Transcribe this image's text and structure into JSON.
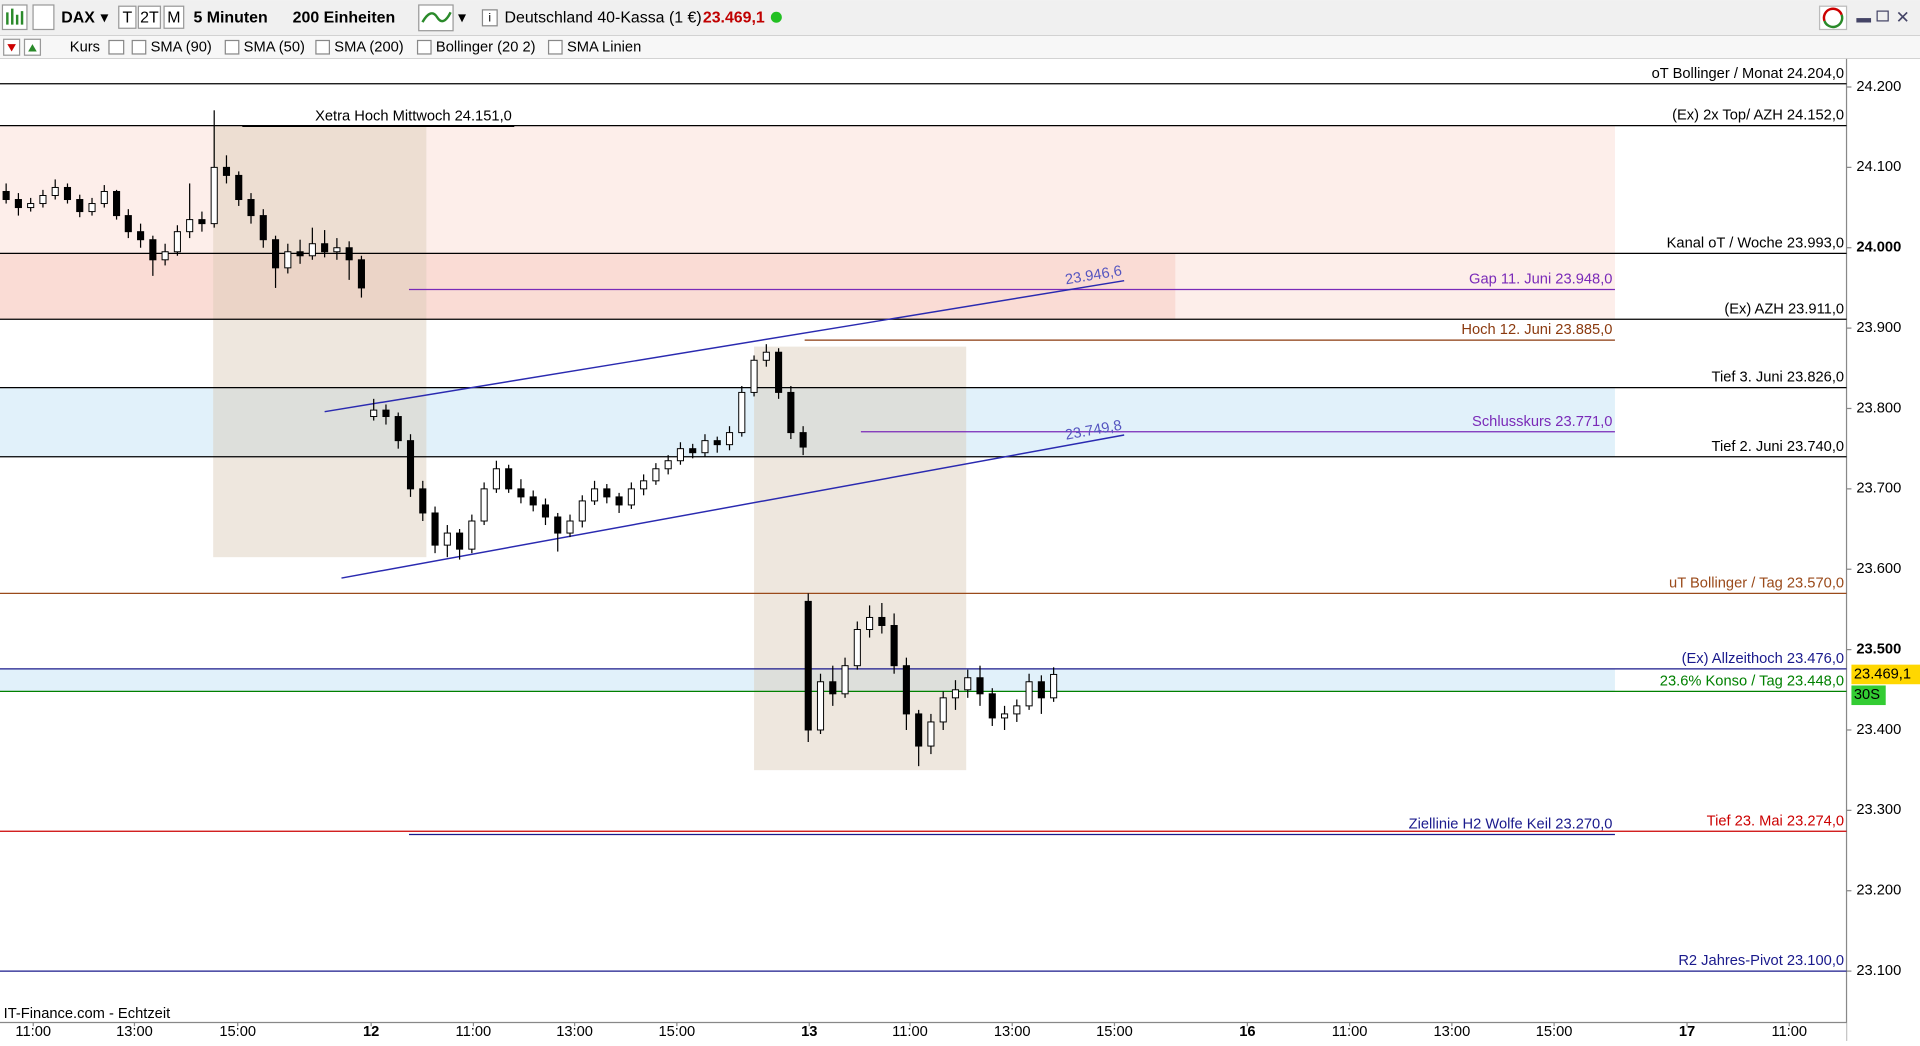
{
  "toolbar": {
    "symbol": "DAX",
    "periods": [
      "T",
      "2T",
      "M"
    ],
    "interval": "5 Minuten",
    "units": "200 Einheiten",
    "instrument": "Deutschland 40-Kassa (1 €)",
    "price": "23.469,1",
    "indicators": [
      "Kurs",
      "SMA (90)",
      "SMA (50)",
      "SMA (200)",
      "Bollinger (20 2)",
      "SMA Linien"
    ]
  },
  "chart_data": {
    "type": "candlestick",
    "up_color": "#ffffff",
    "down_color": "#000000",
    "xlim": [
      0,
      36.12
    ],
    "ylim": [
      23036,
      24235
    ],
    "xticks": [
      {
        "value": 0.65,
        "label": "11:00"
      },
      {
        "value": 2.63,
        "label": "13:00"
      },
      {
        "value": 4.65,
        "label": "15:00"
      },
      {
        "value": 7.26,
        "label": "12"
      },
      {
        "value": 9.26,
        "label": "11:00"
      },
      {
        "value": 11.24,
        "label": "13:00"
      },
      {
        "value": 13.24,
        "label": "15:00"
      },
      {
        "value": 15.83,
        "label": "13"
      },
      {
        "value": 17.8,
        "label": "11:00"
      },
      {
        "value": 19.8,
        "label": "13:00"
      },
      {
        "value": 21.8,
        "label": "15:00"
      },
      {
        "value": 24.4,
        "label": "16"
      },
      {
        "value": 26.4,
        "label": "11:00"
      },
      {
        "value": 28.4,
        "label": "13:00"
      },
      {
        "value": 30.4,
        "label": "15:00"
      },
      {
        "value": 33.0,
        "label": "17"
      },
      {
        "value": 35.0,
        "label": "11:00"
      }
    ],
    "yticks": [
      {
        "value": 24200,
        "label": "24.200"
      },
      {
        "value": 24100,
        "label": "24.100"
      },
      {
        "value": 24000,
        "label": "24.000"
      },
      {
        "value": 23900,
        "label": "23.900"
      },
      {
        "value": 23800,
        "label": "23.800"
      },
      {
        "value": 23700,
        "label": "23.700"
      },
      {
        "value": 23600,
        "label": "23.600"
      },
      {
        "value": 23500,
        "label": "23.500"
      },
      {
        "value": 23400,
        "label": "23.400"
      },
      {
        "value": 23300,
        "label": "23.300"
      },
      {
        "value": 23200,
        "label": "23.200"
      },
      {
        "value": 23100,
        "label": "23.100"
      }
    ],
    "candles": {
      "x": [
        0.12,
        0.36,
        0.6,
        0.84,
        1.08,
        1.32,
        1.56,
        1.8,
        2.04,
        2.28,
        2.51,
        2.75,
        2.99,
        3.23,
        3.47,
        3.71,
        3.95,
        4.19,
        4.43,
        4.67,
        4.91,
        5.15,
        5.39,
        5.63,
        5.87,
        6.11,
        6.35,
        6.59,
        6.83,
        7.07,
        7.31,
        7.55,
        7.79,
        8.03,
        8.27,
        8.51,
        8.75,
        8.99,
        9.23,
        9.47,
        9.71,
        9.95,
        10.19,
        10.43,
        10.67,
        10.91,
        11.15,
        11.39,
        11.63,
        11.87,
        12.11,
        12.35,
        12.59,
        12.83,
        13.07,
        13.31,
        13.55,
        13.79,
        14.03,
        14.27,
        14.51,
        14.75,
        14.99,
        15.23,
        15.47,
        15.71,
        15.81,
        16.05,
        16.29,
        16.53,
        16.77,
        17.01,
        17.25,
        17.49,
        17.73,
        17.97,
        18.21,
        18.45,
        18.69,
        18.93,
        19.17,
        19.41,
        19.65,
        19.89,
        20.13,
        20.37,
        20.61
      ],
      "ohlc": [
        [
          24070,
          24080,
          24055,
          24060
        ],
        [
          24060,
          24068,
          24040,
          24050
        ],
        [
          24050,
          24062,
          24045,
          24055
        ],
        [
          24055,
          24072,
          24050,
          24065
        ],
        [
          24065,
          24085,
          24060,
          24075
        ],
        [
          24075,
          24080,
          24055,
          24060
        ],
        [
          24060,
          24066,
          24038,
          24045
        ],
        [
          24045,
          24062,
          24040,
          24055
        ],
        [
          24055,
          24078,
          24050,
          24070
        ],
        [
          24070,
          24072,
          24035,
          24040
        ],
        [
          24040,
          24048,
          24012,
          24020
        ],
        [
          24020,
          24030,
          24000,
          24010
        ],
        [
          24010,
          24015,
          23965,
          23985
        ],
        [
          23985,
          24005,
          23978,
          23995
        ],
        [
          23995,
          24028,
          23990,
          24020
        ],
        [
          24020,
          24080,
          24012,
          24035
        ],
        [
          24035,
          24045,
          24020,
          24030
        ],
        [
          24030,
          24171,
          24025,
          24100
        ],
        [
          24100,
          24115,
          24080,
          24090
        ],
        [
          24090,
          24095,
          24052,
          24060
        ],
        [
          24060,
          24068,
          24030,
          24040
        ],
        [
          24040,
          24048,
          24000,
          24010
        ],
        [
          24010,
          24015,
          23950,
          23975
        ],
        [
          23975,
          24005,
          23968,
          23995
        ],
        [
          23995,
          24010,
          23980,
          23990
        ],
        [
          23990,
          24025,
          23985,
          24005
        ],
        [
          24005,
          24022,
          23988,
          23995
        ],
        [
          23995,
          24012,
          23985,
          24000
        ],
        [
          24000,
          24008,
          23960,
          23985
        ],
        [
          23985,
          23990,
          23938,
          23950
        ],
        [
          23790,
          23812,
          23785,
          23798
        ],
        [
          23798,
          23805,
          23780,
          23790
        ],
        [
          23790,
          23795,
          23750,
          23760
        ],
        [
          23760,
          23768,
          23690,
          23700
        ],
        [
          23700,
          23710,
          23660,
          23670
        ],
        [
          23670,
          23678,
          23620,
          23630
        ],
        [
          23630,
          23655,
          23615,
          23645
        ],
        [
          23645,
          23650,
          23612,
          23625
        ],
        [
          23625,
          23668,
          23620,
          23660
        ],
        [
          23660,
          23708,
          23655,
          23700
        ],
        [
          23700,
          23735,
          23695,
          23725
        ],
        [
          23725,
          23730,
          23695,
          23700
        ],
        [
          23700,
          23712,
          23682,
          23690
        ],
        [
          23690,
          23698,
          23672,
          23680
        ],
        [
          23680,
          23688,
          23655,
          23665
        ],
        [
          23665,
          23670,
          23622,
          23645
        ],
        [
          23645,
          23668,
          23640,
          23660
        ],
        [
          23660,
          23692,
          23652,
          23685
        ],
        [
          23685,
          23710,
          23680,
          23700
        ],
        [
          23700,
          23706,
          23682,
          23690
        ],
        [
          23690,
          23695,
          23670,
          23680
        ],
        [
          23680,
          23708,
          23675,
          23700
        ],
        [
          23700,
          23718,
          23692,
          23710
        ],
        [
          23710,
          23732,
          23705,
          23725
        ],
        [
          23725,
          23742,
          23718,
          23735
        ],
        [
          23735,
          23758,
          23730,
          23750
        ],
        [
          23750,
          23756,
          23738,
          23745
        ],
        [
          23745,
          23768,
          23740,
          23760
        ],
        [
          23760,
          23765,
          23745,
          23755
        ],
        [
          23755,
          23778,
          23748,
          23770
        ],
        [
          23770,
          23828,
          23765,
          23820
        ],
        [
          23820,
          23866,
          23815,
          23860
        ],
        [
          23860,
          23880,
          23852,
          23870
        ],
        [
          23870,
          23875,
          23812,
          23820
        ],
        [
          23820,
          23828,
          23762,
          23770
        ],
        [
          23770,
          23778,
          23742,
          23752
        ],
        [
          23560,
          23570,
          23385,
          23400
        ],
        [
          23400,
          23470,
          23395,
          23460
        ],
        [
          23460,
          23480,
          23430,
          23445
        ],
        [
          23445,
          23490,
          23440,
          23480
        ],
        [
          23480,
          23535,
          23475,
          23525
        ],
        [
          23525,
          23555,
          23515,
          23540
        ],
        [
          23540,
          23558,
          23520,
          23530
        ],
        [
          23530,
          23545,
          23470,
          23480
        ],
        [
          23480,
          23490,
          23400,
          23420
        ],
        [
          23420,
          23425,
          23355,
          23380
        ],
        [
          23380,
          23420,
          23370,
          23410
        ],
        [
          23410,
          23448,
          23400,
          23440
        ],
        [
          23440,
          23462,
          23425,
          23450
        ],
        [
          23450,
          23475,
          23440,
          23465
        ],
        [
          23465,
          23480,
          23430,
          23445
        ],
        [
          23445,
          23452,
          23405,
          23415
        ],
        [
          23415,
          23430,
          23400,
          23420
        ],
        [
          23420,
          23438,
          23410,
          23430
        ],
        [
          23430,
          23470,
          23425,
          23460
        ],
        [
          23460,
          23468,
          23420,
          23440
        ],
        [
          23440,
          23478,
          23435,
          23469.1
        ]
      ]
    },
    "zones": [
      {
        "x": [
          0,
          31.59
        ],
        "y": [
          23911,
          24152
        ],
        "color": "#fdeeea"
      },
      {
        "x": [
          0,
          22.99
        ],
        "y": [
          23911,
          23993
        ],
        "color": "#fadcd5"
      },
      {
        "x": [
          0,
          31.59
        ],
        "y": [
          23740,
          23826
        ],
        "color": "#e1f1fa"
      },
      {
        "x": [
          0,
          31.59
        ],
        "y": [
          23448,
          23476
        ],
        "color": "#e1f1fa"
      },
      {
        "x": [
          4.17,
          8.34
        ],
        "y": [
          23615,
          24152
        ],
        "color": "#d9c9b6"
      },
      {
        "x": [
          14.75,
          18.9
        ],
        "y": [
          23350,
          23877
        ],
        "color": "#d9c9b6"
      }
    ],
    "levels": [
      {
        "label": "oT Bollinger / Monat 24.204,0",
        "value": 24204,
        "color": "#000000"
      },
      {
        "label": "(Ex) 2x Top/ AZH 24.152,0",
        "value": 24152,
        "color": "#000000"
      },
      {
        "label": "Kanal oT / Woche 23.993,0",
        "value": 23993,
        "color": "#000000"
      },
      {
        "label": "(Ex)  AZH 23.911,0",
        "value": 23911,
        "color": "#000000"
      },
      {
        "label": "Tief 3. Juni 23.826,0",
        "value": 23826,
        "color": "#000000"
      },
      {
        "label": "Tief 2. Juni 23.740,0",
        "value": 23740,
        "color": "#000000"
      },
      {
        "label": "uT Bollinger / Tag 23.570,0",
        "value": 23570,
        "color": "#9a4a1a"
      },
      {
        "label": "(Ex)  Allzeithoch  23.476,0",
        "value": 23476,
        "color": "#1a1a8c"
      },
      {
        "label": "23.6% Konso / Tag 23.448,0",
        "value": 23448,
        "color": "#008000"
      },
      {
        "label": "Tief 23. Mai  23.274,0",
        "value": 23274,
        "color": "#cc0000"
      },
      {
        "label": "R2 Jahres-Pivot  23.100,0",
        "value": 23100,
        "color": "#1a1a8c"
      },
      {
        "label": "Xetra Hoch Mittwoch 24.151,0",
        "value": 24151,
        "color": "#000000",
        "x": [
          4.74,
          10.06
        ]
      },
      {
        "label": "Gap 11. Juni 23.948,0",
        "value": 23948,
        "color": "#7a2ab8",
        "x": [
          8.0,
          31.59
        ]
      },
      {
        "label": "Hoch 12. Juni  23.885,0",
        "value": 23885,
        "color": "#8b3a0f",
        "x": [
          15.74,
          31.59
        ]
      },
      {
        "label": "Schlusskurs 23.771,0",
        "value": 23771,
        "color": "#7a2ab8",
        "x": [
          16.84,
          31.59
        ]
      },
      {
        "label": "Ziellinie H2 Wolfe Keil 23.270,0",
        "value": 23270,
        "color": "#1a1a8c",
        "x": [
          8.0,
          31.59
        ]
      }
    ],
    "trendlines": [
      {
        "x": [
          6.35,
          21.99
        ],
        "y": [
          23796,
          23959
        ],
        "label": "23.946,6",
        "color": "#2a2ab0"
      },
      {
        "x": [
          6.68,
          21.99
        ],
        "y": [
          23589,
          23767
        ],
        "label": "23.749,8",
        "color": "#2a2ab0"
      }
    ],
    "last_price": {
      "value": 23469.1,
      "label": "23.469,1"
    },
    "timer": "30S",
    "source": "IT-Finance.com - Echtzeit"
  }
}
